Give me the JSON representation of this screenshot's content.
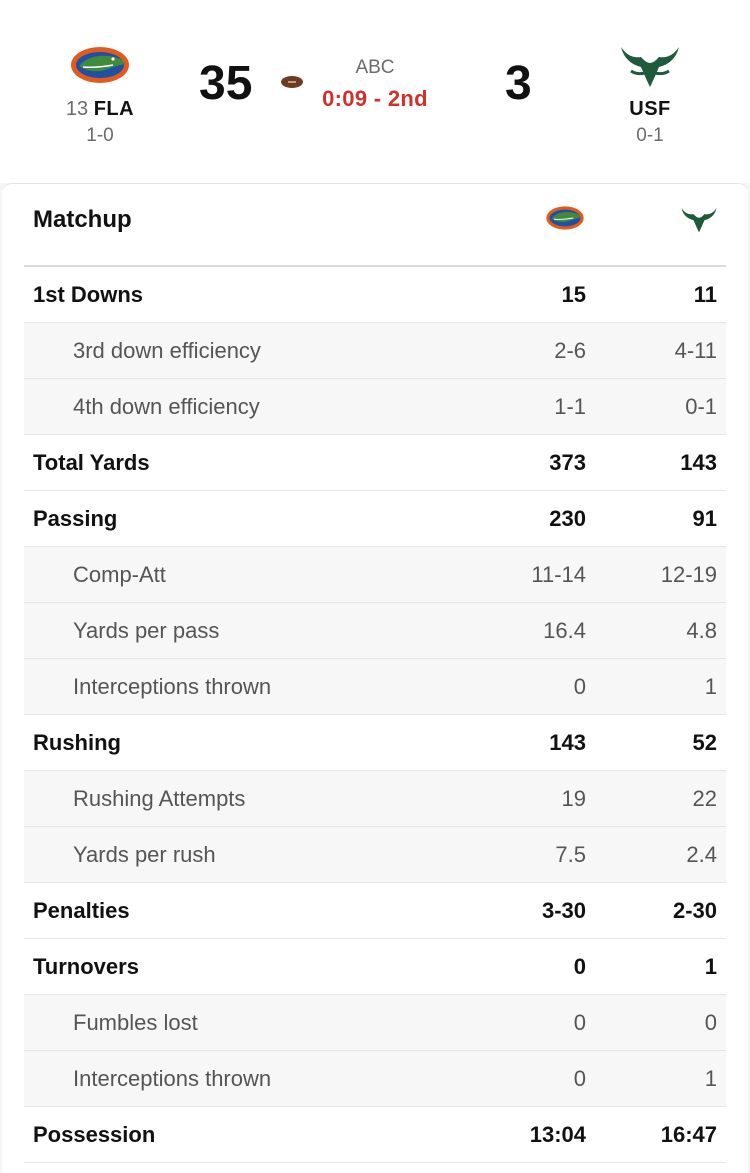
{
  "game": {
    "home": {
      "rank": "13",
      "abbr": "FLA",
      "record": "1-0",
      "score": "35"
    },
    "away": {
      "abbr": "USF",
      "record": "0-1",
      "score": "3"
    },
    "network": "ABC",
    "clock": "0:09 - 2nd"
  },
  "matchup": {
    "title": "Matchup",
    "rows": [
      {
        "label": "1st Downs",
        "home": "15",
        "away": "11",
        "type": "main"
      },
      {
        "label": "3rd down efficiency",
        "home": "2-6",
        "away": "4-11",
        "type": "sub"
      },
      {
        "label": "4th down efficiency",
        "home": "1-1",
        "away": "0-1",
        "type": "sub"
      },
      {
        "label": "Total Yards",
        "home": "373",
        "away": "143",
        "type": "main"
      },
      {
        "label": "Passing",
        "home": "230",
        "away": "91",
        "type": "main"
      },
      {
        "label": "Comp-Att",
        "home": "11-14",
        "away": "12-19",
        "type": "sub"
      },
      {
        "label": "Yards per pass",
        "home": "16.4",
        "away": "4.8",
        "type": "sub"
      },
      {
        "label": "Interceptions thrown",
        "home": "0",
        "away": "1",
        "type": "sub"
      },
      {
        "label": "Rushing",
        "home": "143",
        "away": "52",
        "type": "main"
      },
      {
        "label": "Rushing Attempts",
        "home": "19",
        "away": "22",
        "type": "sub"
      },
      {
        "label": "Yards per rush",
        "home": "7.5",
        "away": "2.4",
        "type": "sub"
      },
      {
        "label": "Penalties",
        "home": "3-30",
        "away": "2-30",
        "type": "main"
      },
      {
        "label": "Turnovers",
        "home": "0",
        "away": "1",
        "type": "main"
      },
      {
        "label": "Fumbles lost",
        "home": "0",
        "away": "0",
        "type": "sub"
      },
      {
        "label": "Interceptions thrown",
        "home": "0",
        "away": "1",
        "type": "sub"
      },
      {
        "label": "Possession",
        "home": "13:04",
        "away": "16:47",
        "type": "main"
      }
    ]
  },
  "colors": {
    "gators_orange": "#e35b1c",
    "gators_blue": "#1f4fa6",
    "bulls_green": "#1e5a3b",
    "clock_red": "#d0312d"
  },
  "icons": {
    "home_logo": "gator-logo-icon",
    "away_logo": "bull-horns-logo-icon",
    "possession": "football-icon"
  }
}
